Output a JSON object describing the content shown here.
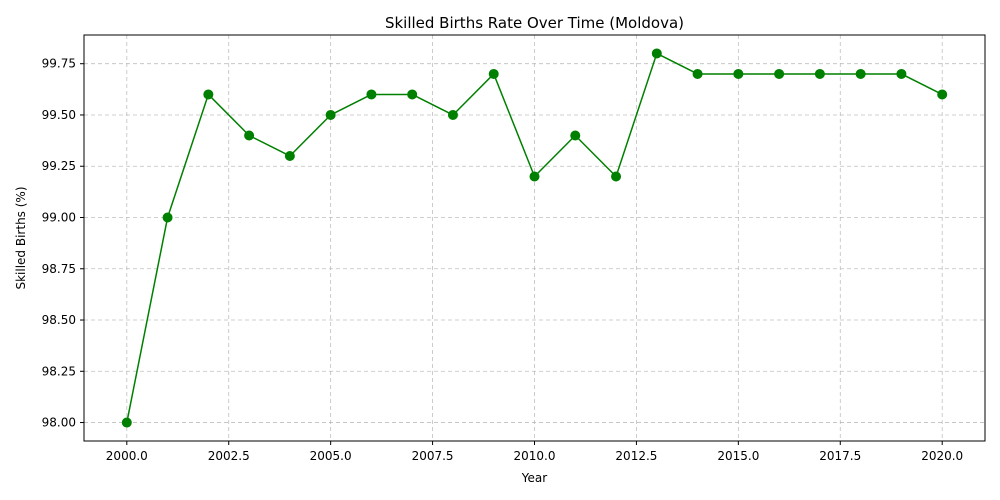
{
  "chart_data": {
    "type": "line",
    "title": "Skilled Births Rate Over Time (Moldova)",
    "xlabel": "Year",
    "ylabel": "Skilled Births (%)",
    "xlim": [
      1998.95,
      2021.05
    ],
    "ylim": [
      97.91,
      99.89
    ],
    "x_ticks": [
      2000.0,
      2002.5,
      2005.0,
      2007.5,
      2010.0,
      2012.5,
      2015.0,
      2017.5,
      2020.0
    ],
    "x_tick_labels": [
      "2000.0",
      "2002.5",
      "2005.0",
      "2007.5",
      "2010.0",
      "2012.5",
      "2015.0",
      "2017.5",
      "2020.0"
    ],
    "y_ticks": [
      98.0,
      98.25,
      98.5,
      98.75,
      99.0,
      99.25,
      99.5,
      99.75
    ],
    "y_tick_labels": [
      "98.00",
      "98.25",
      "98.50",
      "98.75",
      "99.00",
      "99.25",
      "99.50",
      "99.75"
    ],
    "grid": true,
    "series": [
      {
        "color": "#008000",
        "marker": "circle",
        "x": [
          2000,
          2001,
          2002,
          2003,
          2004,
          2005,
          2006,
          2007,
          2008,
          2009,
          2010,
          2011,
          2012,
          2013,
          2014,
          2015,
          2016,
          2017,
          2018,
          2019,
          2020
        ],
        "values": [
          98.0,
          99.0,
          99.6,
          99.4,
          99.3,
          99.5,
          99.6,
          99.6,
          99.5,
          99.7,
          99.2,
          99.4,
          99.2,
          99.8,
          99.7,
          99.7,
          99.7,
          99.7,
          99.7,
          99.7,
          99.6
        ]
      }
    ]
  }
}
